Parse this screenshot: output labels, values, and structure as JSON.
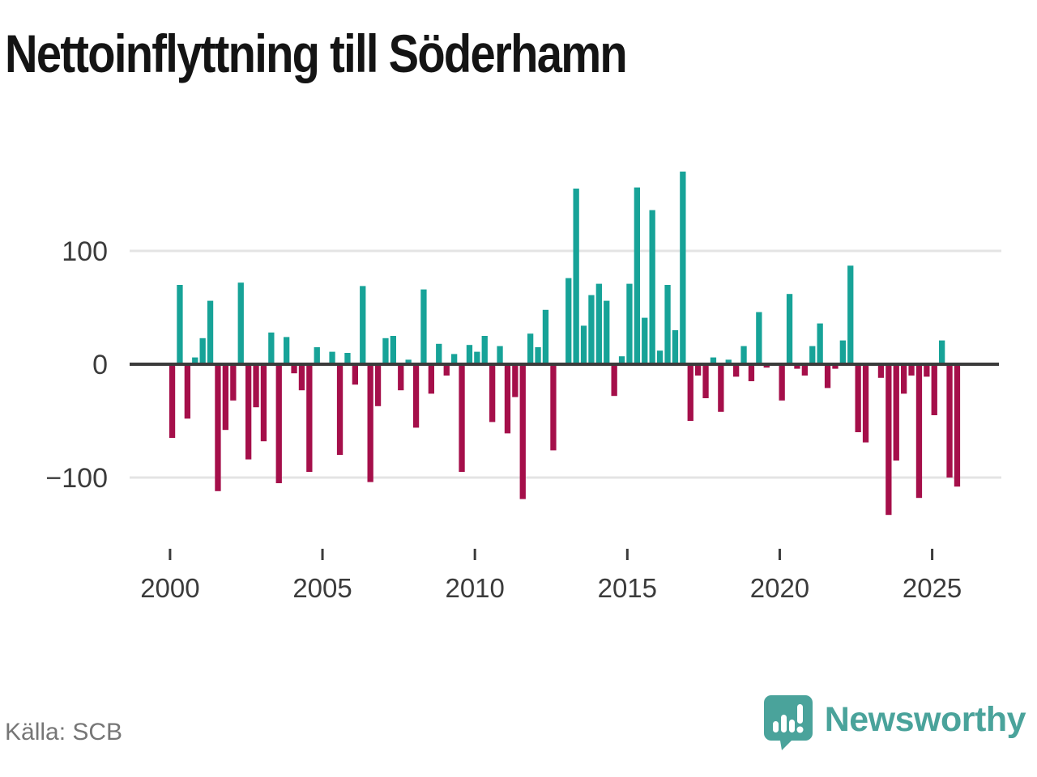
{
  "title": "Nettoinflyttning till Söderhamn",
  "source": "Källa: SCB",
  "logo": {
    "text": "Newsworthy",
    "icon": "newsworthy-speech-bubble-bar-chart-icon"
  },
  "colors": {
    "positive_bar": "#17a398",
    "negative_bar": "#a50f4a",
    "gridline": "#e4e4e4",
    "zero_line": "#3b3b3b",
    "tick_label": "#3b3b3b",
    "title_text": "#141414",
    "source_text": "#767676",
    "brand_teal": "#4aa39b"
  },
  "chart_data": {
    "type": "bar",
    "title": "Nettoinflyttning till Söderhamn",
    "frequency": "quarterly",
    "start_period": "2000-Q1",
    "end_period": "2025-Q4",
    "values": [
      -65,
      70,
      -48,
      6,
      23,
      56,
      -112,
      -58,
      -32,
      72,
      -84,
      -38,
      -68,
      28,
      -105,
      24,
      -8,
      -23,
      -95,
      15,
      0,
      11,
      -80,
      10,
      -18,
      69,
      -104,
      -37,
      23,
      25,
      -23,
      4,
      -56,
      66,
      -26,
      18,
      -10,
      9,
      -95,
      17,
      11,
      25,
      -51,
      16,
      -61,
      -29,
      -119,
      27,
      15,
      48,
      -76,
      0,
      76,
      155,
      34,
      61,
      71,
      56,
      -28,
      7,
      71,
      156,
      41,
      136,
      12,
      70,
      30,
      170,
      -50,
      -10,
      -30,
      6,
      -42,
      4,
      -11,
      16,
      -15,
      46,
      -3,
      0,
      -32,
      62,
      -4,
      -10,
      16,
      36,
      -21,
      -4,
      21,
      87,
      -60,
      -69,
      0,
      -12,
      -133,
      -85,
      -26,
      -10,
      -118,
      -11,
      -45,
      21,
      -100,
      -108
    ],
    "xticks": [
      {
        "quarter_index": 0,
        "label": "2000"
      },
      {
        "quarter_index": 20,
        "label": "2005"
      },
      {
        "quarter_index": 40,
        "label": "2010"
      },
      {
        "quarter_index": 60,
        "label": "2015"
      },
      {
        "quarter_index": 80,
        "label": "2020"
      },
      {
        "quarter_index": 100,
        "label": "2025"
      }
    ],
    "yticks": [
      {
        "value": 100,
        "label": "100"
      },
      {
        "value": 0,
        "label": "0"
      },
      {
        "value": -100,
        "label": "−100"
      }
    ],
    "ylim": [
      -140,
      175
    ],
    "grid": "horizontal",
    "legend": "none"
  }
}
